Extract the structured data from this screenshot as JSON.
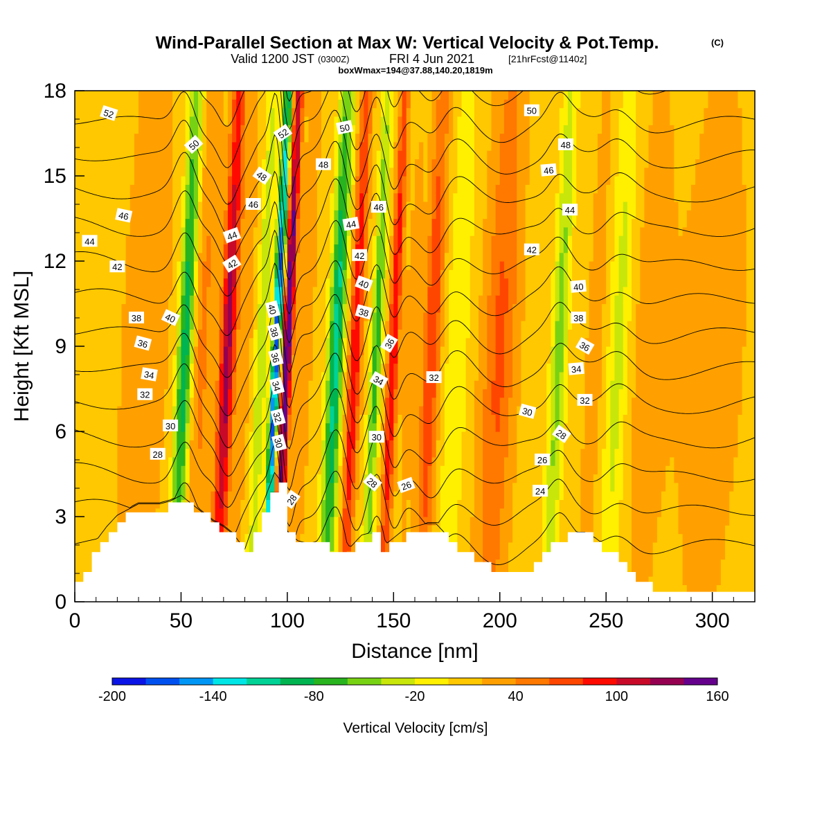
{
  "header": {
    "title_main": "Wind-Parallel Section at Max W: Vertical Velocity & Pot.Temp.",
    "title_mark": "(C)",
    "subtitle_valid": "Valid 1200 JST",
    "subtitle_utc": "(0300Z)",
    "subtitle_date": "FRI 4 Jun 2021",
    "subtitle_fcst": "[21hrFcst@1140z]",
    "subtitle_box": "boxWmax=194@37.88,140.20,1819m"
  },
  "chart_data": {
    "type": "heatmap",
    "xlabel": "Distance [nm]",
    "ylabel": "Height [Kft MSL]",
    "xlim": [
      0,
      320
    ],
    "ylim": [
      0,
      18
    ],
    "x_ticks": [
      0,
      50,
      100,
      150,
      200,
      250,
      300
    ],
    "y_ticks": [
      0,
      3,
      6,
      9,
      12,
      15,
      18
    ],
    "colorbar": {
      "label": "Vertical Velocity [cm/s]",
      "range": [
        -200,
        160
      ],
      "tick_values": [
        -200,
        -140,
        -80,
        -20,
        40,
        100,
        160
      ],
      "colors": [
        "#0a14e6",
        "#0050f0",
        "#0096f5",
        "#00e6e6",
        "#00d296",
        "#00b450",
        "#28b41e",
        "#78d214",
        "#c8e60a",
        "#fff000",
        "#ffc800",
        "#ffa000",
        "#ff7800",
        "#ff4600",
        "#ff0a00",
        "#c80a28",
        "#960050",
        "#64008c"
      ]
    },
    "features": [
      {
        "x": 20,
        "w": -12,
        "sigma": 12
      },
      {
        "x": 30,
        "w": 30,
        "sigma": 14
      },
      {
        "x": 52,
        "w": -110,
        "sigma": 3.5
      },
      {
        "x": 60,
        "w": 35,
        "sigma": 5
      },
      {
        "x": 72,
        "w": 120,
        "sigma": 3.5
      },
      {
        "x": 80,
        "w": 20,
        "sigma": 4
      },
      {
        "x": 88,
        "w": -50,
        "sigma": 3
      },
      {
        "x": 95,
        "w": -190,
        "sigma": 2
      },
      {
        "x": 100,
        "w": 160,
        "sigma": 2.3
      },
      {
        "x": 108,
        "w": 25,
        "sigma": 4
      },
      {
        "x": 123,
        "w": -120,
        "sigma": 3.5
      },
      {
        "x": 132,
        "w": 90,
        "sigma": 3
      },
      {
        "x": 142,
        "w": -80,
        "sigma": 2.5
      },
      {
        "x": 150,
        "w": 90,
        "sigma": 2.5
      },
      {
        "x": 158,
        "w": 15,
        "sigma": 4
      },
      {
        "x": 168,
        "w": 70,
        "sigma": 4
      },
      {
        "x": 180,
        "w": -30,
        "sigma": 5
      },
      {
        "x": 200,
        "w": 55,
        "sigma": 8
      },
      {
        "x": 228,
        "w": -60,
        "sigma": 3.5
      },
      {
        "x": 245,
        "w": 20,
        "sigma": 5
      },
      {
        "x": 256,
        "w": -40,
        "sigma": 5
      },
      {
        "x": 270,
        "w": 18,
        "sigma": 10
      },
      {
        "x": 300,
        "w": 20,
        "sigma": 18
      }
    ],
    "terrain": {
      "x": [
        0,
        3,
        6,
        10,
        15,
        20,
        25,
        30,
        40,
        45,
        50,
        55,
        60,
        65,
        70,
        75,
        80,
        85,
        88,
        90,
        92,
        94,
        96,
        98,
        100,
        105,
        110,
        115,
        120,
        125,
        130,
        135,
        140,
        145,
        150,
        155,
        160,
        165,
        170,
        175,
        180,
        185,
        190,
        195,
        200,
        205,
        210,
        215,
        220,
        225,
        230,
        235,
        240,
        245,
        250,
        255,
        260,
        265,
        270,
        275,
        280,
        290,
        300,
        310,
        320
      ],
      "height": [
        0.6,
        0.9,
        1.3,
        2.0,
        2.5,
        2.9,
        3.1,
        3.3,
        3.3,
        3.4,
        3.6,
        3.3,
        3.0,
        2.7,
        2.5,
        2.2,
        1.7,
        2.8,
        3.2,
        3.6,
        4.0,
        4.4,
        4.2,
        3.9,
        2.3,
        2.0,
        1.9,
        2.0,
        1.9,
        1.9,
        1.8,
        2.2,
        2.3,
        1.8,
        2.1,
        2.4,
        2.5,
        2.6,
        2.6,
        2.2,
        1.9,
        1.6,
        1.4,
        1.2,
        1.0,
        1.0,
        1.0,
        1.2,
        1.7,
        2.1,
        2.3,
        2.3,
        2.3,
        2.1,
        1.8,
        1.5,
        1.1,
        0.8,
        0.5,
        0.35,
        0.35,
        0.35,
        0.35,
        0.35,
        0.35
      ]
    },
    "isentropes": [
      24,
      26,
      28,
      30,
      32,
      34,
      36,
      38,
      40,
      42,
      44,
      46,
      48,
      50,
      52
    ],
    "contour_labels": [
      {
        "text": "52",
        "x": 16,
        "y": 17.2,
        "angle": 18
      },
      {
        "text": "50",
        "x": 56,
        "y": 16.1,
        "angle": -42
      },
      {
        "text": "44",
        "x": 7,
        "y": 12.7,
        "angle": 0
      },
      {
        "text": "46",
        "x": 23,
        "y": 13.6,
        "angle": 12
      },
      {
        "text": "42",
        "x": 20,
        "y": 11.8,
        "angle": 0
      },
      {
        "text": "44",
        "x": 74,
        "y": 12.9,
        "angle": -20
      },
      {
        "text": "42",
        "x": 74,
        "y": 11.9,
        "angle": -32
      },
      {
        "text": "48",
        "x": 88,
        "y": 15.0,
        "angle": 35
      },
      {
        "text": "46",
        "x": 84,
        "y": 14.0,
        "angle": 0
      },
      {
        "text": "52",
        "x": 98,
        "y": 16.5,
        "angle": -35
      },
      {
        "text": "50",
        "x": 127,
        "y": 16.7,
        "angle": -12
      },
      {
        "text": "48",
        "x": 117,
        "y": 15.4,
        "angle": 0
      },
      {
        "text": "46",
        "x": 143,
        "y": 13.9,
        "angle": 0
      },
      {
        "text": "44",
        "x": 130,
        "y": 13.3,
        "angle": -10
      },
      {
        "text": "42",
        "x": 134,
        "y": 12.2,
        "angle": 0
      },
      {
        "text": "40",
        "x": 136,
        "y": 11.2,
        "angle": 20
      },
      {
        "text": "38",
        "x": 136,
        "y": 10.2,
        "angle": 15
      },
      {
        "text": "36",
        "x": 148,
        "y": 9.1,
        "angle": -60
      },
      {
        "text": "34",
        "x": 143,
        "y": 7.8,
        "angle": 30
      },
      {
        "text": "32",
        "x": 169,
        "y": 7.9,
        "angle": 0
      },
      {
        "text": "30",
        "x": 142,
        "y": 5.8,
        "angle": 0
      },
      {
        "text": "28",
        "x": 140,
        "y": 4.2,
        "angle": 40
      },
      {
        "text": "26",
        "x": 156,
        "y": 4.1,
        "angle": -20
      },
      {
        "text": "40",
        "x": 45,
        "y": 10.0,
        "angle": 25
      },
      {
        "text": "38",
        "x": 29,
        "y": 10.0,
        "angle": 0
      },
      {
        "text": "36",
        "x": 32,
        "y": 9.1,
        "angle": 15
      },
      {
        "text": "34",
        "x": 35,
        "y": 8.0,
        "angle": 10
      },
      {
        "text": "32",
        "x": 33,
        "y": 7.3,
        "angle": 0
      },
      {
        "text": "30",
        "x": 45,
        "y": 6.2,
        "angle": 0
      },
      {
        "text": "28",
        "x": 39,
        "y": 5.2,
        "angle": 0
      },
      {
        "text": "40",
        "x": 93,
        "y": 10.3,
        "angle": 75
      },
      {
        "text": "38",
        "x": 94,
        "y": 9.5,
        "angle": 75
      },
      {
        "text": "36",
        "x": 94.5,
        "y": 8.6,
        "angle": 75
      },
      {
        "text": "34",
        "x": 95,
        "y": 7.6,
        "angle": 75
      },
      {
        "text": "32",
        "x": 95.5,
        "y": 6.5,
        "angle": 75
      },
      {
        "text": "30",
        "x": 96,
        "y": 5.6,
        "angle": 75
      },
      {
        "text": "28",
        "x": 102,
        "y": 3.6,
        "angle": -55
      },
      {
        "text": "50",
        "x": 215,
        "y": 17.3,
        "angle": 0
      },
      {
        "text": "48",
        "x": 231,
        "y": 16.1,
        "angle": 0
      },
      {
        "text": "46",
        "x": 223,
        "y": 15.2,
        "angle": -5
      },
      {
        "text": "44",
        "x": 233,
        "y": 13.8,
        "angle": 0
      },
      {
        "text": "42",
        "x": 215,
        "y": 12.4,
        "angle": 0
      },
      {
        "text": "40",
        "x": 237,
        "y": 11.1,
        "angle": -5
      },
      {
        "text": "38",
        "x": 237,
        "y": 10.0,
        "angle": 0
      },
      {
        "text": "36",
        "x": 240,
        "y": 9.0,
        "angle": 30
      },
      {
        "text": "34",
        "x": 236,
        "y": 8.2,
        "angle": -5
      },
      {
        "text": "32",
        "x": 240,
        "y": 7.1,
        "angle": 0
      },
      {
        "text": "30",
        "x": 213,
        "y": 6.7,
        "angle": 15
      },
      {
        "text": "28",
        "x": 229,
        "y": 5.9,
        "angle": 35
      },
      {
        "text": "26",
        "x": 220,
        "y": 5.0,
        "angle": 0
      },
      {
        "text": "24",
        "x": 219,
        "y": 3.9,
        "angle": 0
      }
    ]
  }
}
